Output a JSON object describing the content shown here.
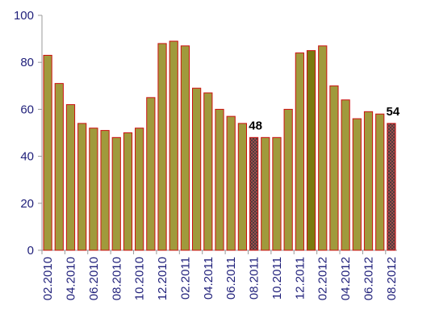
{
  "chart_data": {
    "type": "bar",
    "categories": [
      "02.2010",
      null,
      "04.2010",
      null,
      "06.2010",
      null,
      "08.2010",
      null,
      "10.2010",
      null,
      "12.2010",
      null,
      "02.2011",
      null,
      "04.2011",
      null,
      "06.2011",
      null,
      "08.2011",
      null,
      "10.2011",
      null,
      "12.2011",
      null,
      "02.2012",
      null,
      "04.2012",
      null,
      "06.2012",
      null,
      "08.2012"
    ],
    "values": [
      83,
      71,
      62,
      54,
      52,
      51,
      48,
      50,
      52,
      65,
      88,
      89,
      87,
      69,
      67,
      60,
      57,
      54,
      48,
      48,
      48,
      60,
      84,
      85,
      87,
      70,
      64,
      56,
      59,
      58,
      54
    ],
    "color": "#a09a3c",
    "edge_color": "#cc1010",
    "highlight": {
      "index": 23,
      "color": "#7a7a10"
    },
    "hatched_indices": [
      18,
      30
    ],
    "labeled_indices": [
      18,
      30
    ],
    "ylim": [
      0,
      100
    ],
    "yticks": [
      0,
      20,
      40,
      60,
      80,
      100
    ],
    "grid": false
  }
}
